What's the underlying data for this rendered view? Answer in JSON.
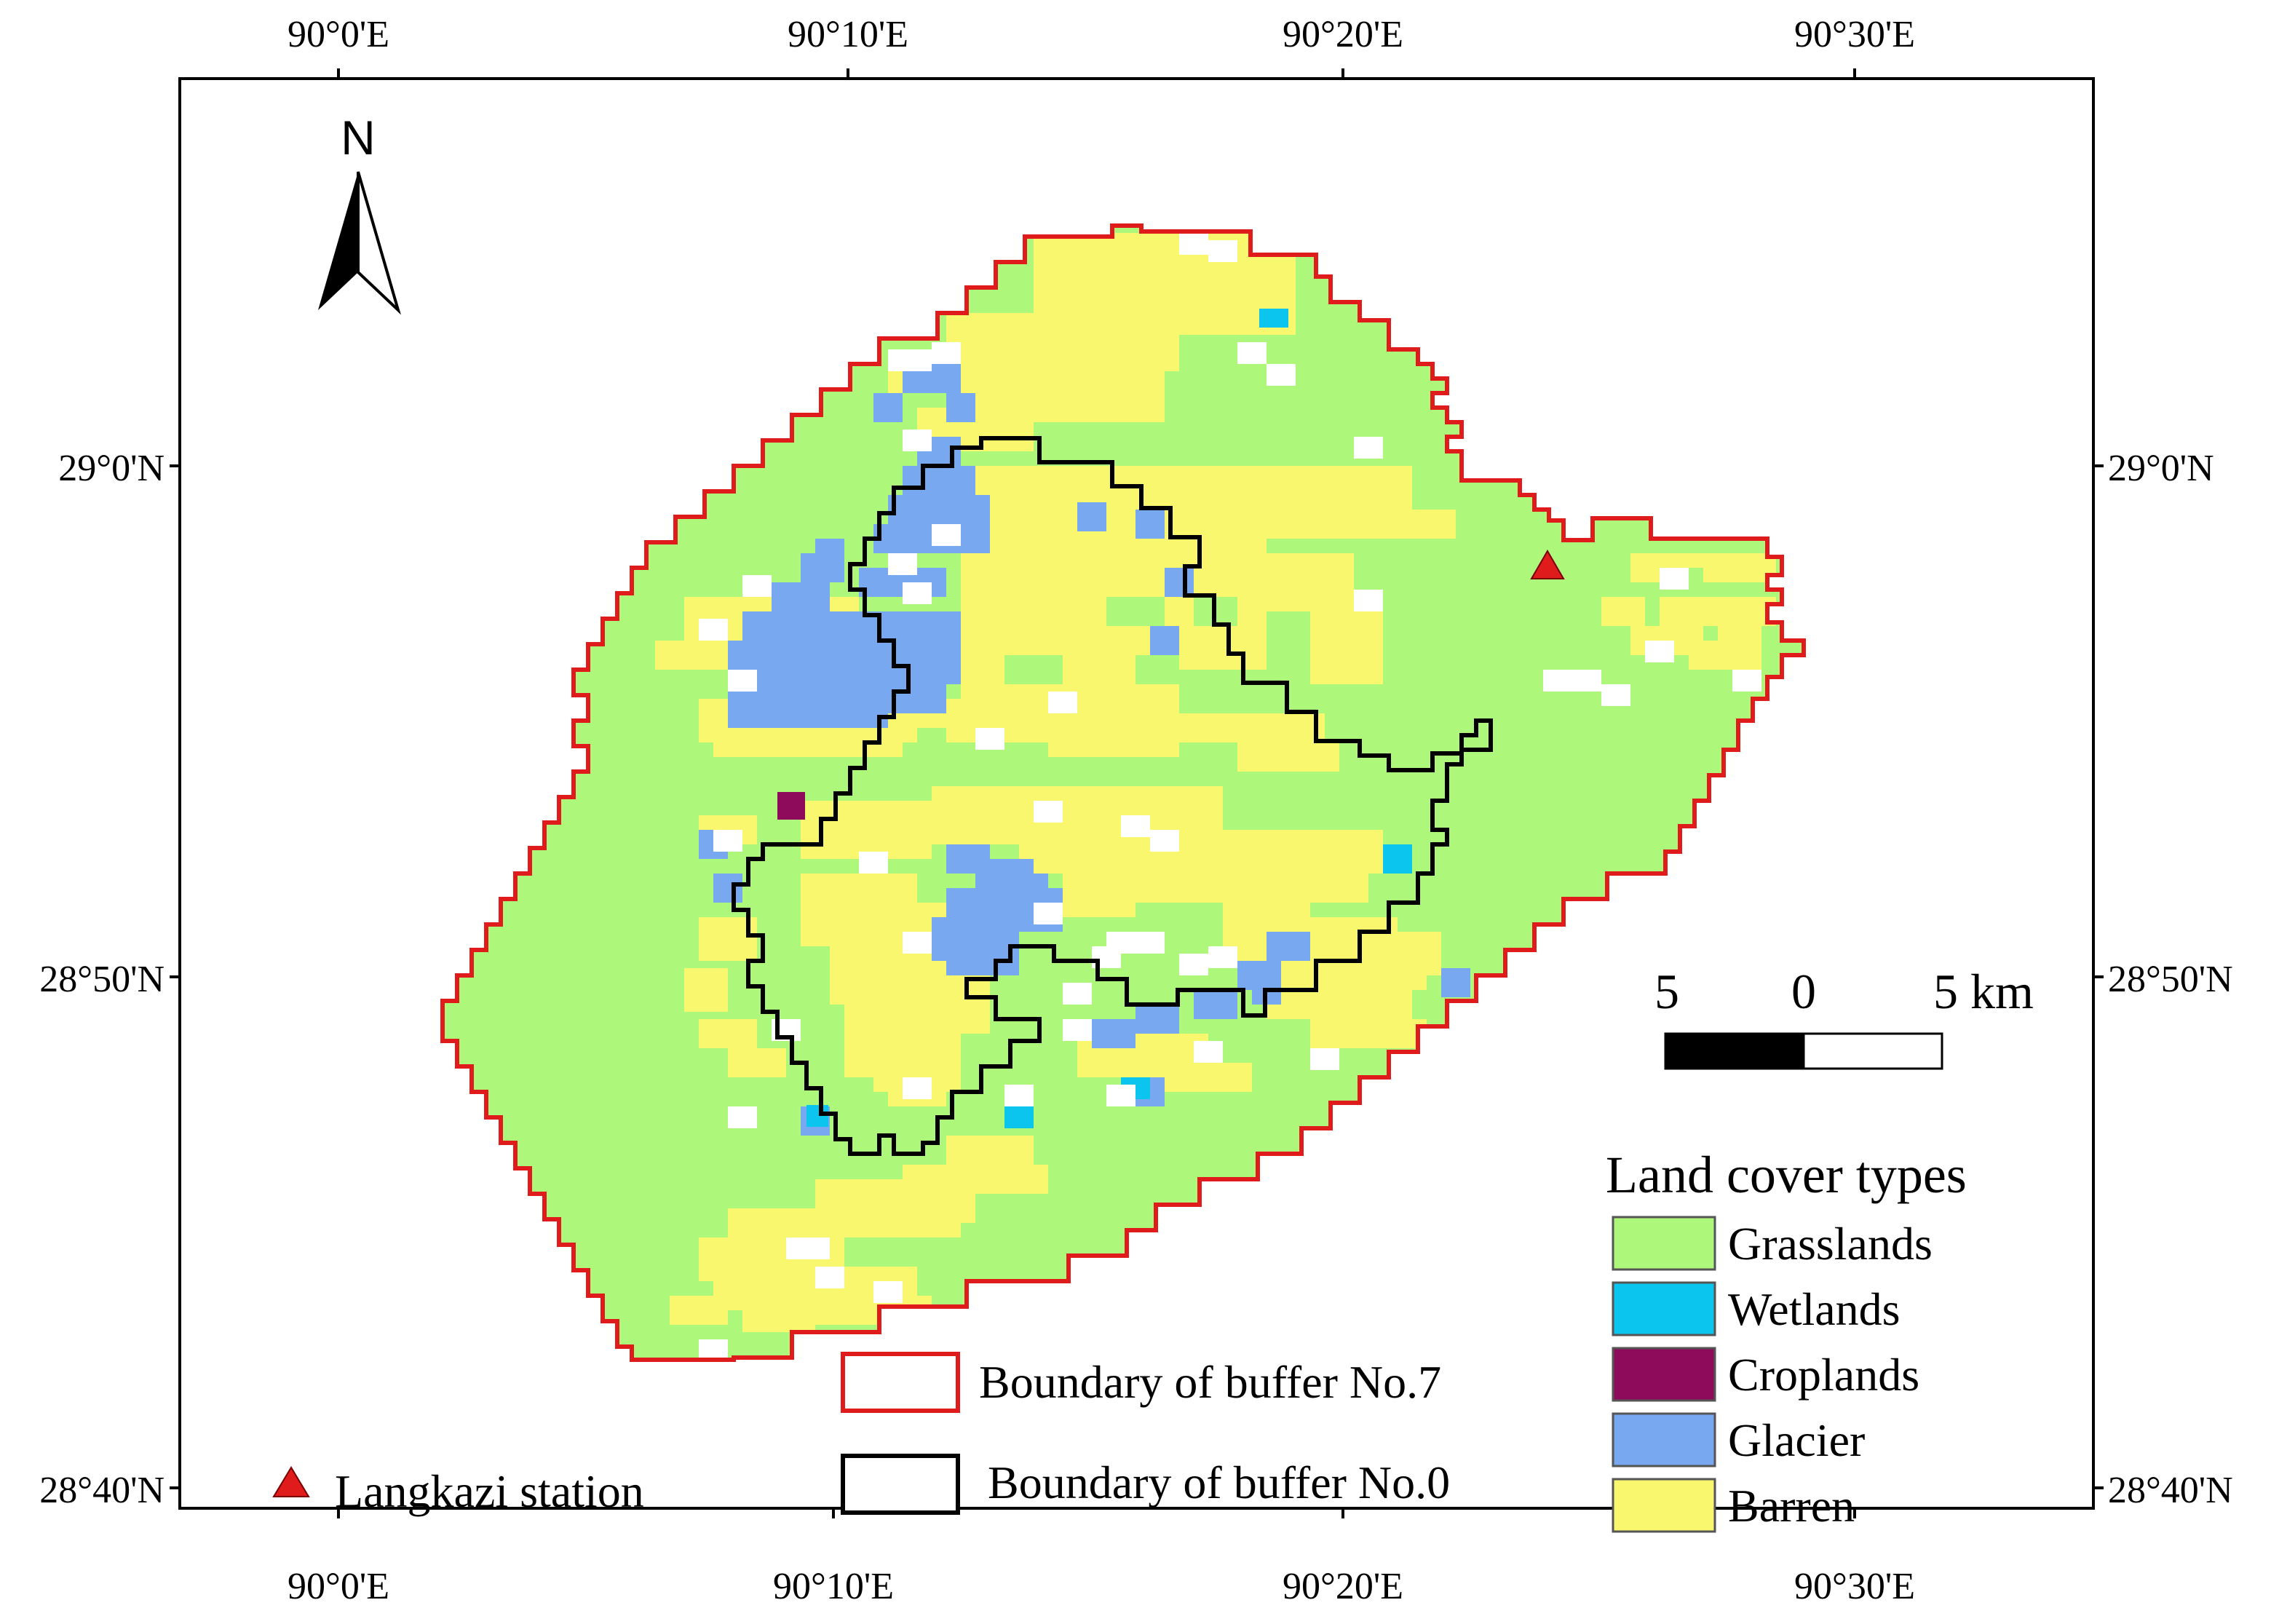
{
  "map": {
    "north_label": "N",
    "top_ticks": [
      "90°0'E",
      "90°10'E",
      "90°20'E",
      "90°30'E"
    ],
    "bottom_ticks": [
      "90°0'E",
      "90°10'E",
      "90°20'E",
      "90°30'E"
    ],
    "left_ticks": [
      "29°0'N",
      "28°50'N",
      "28°40'N"
    ],
    "right_ticks": [
      "29°0'N",
      "28°50'N",
      "28°40'N"
    ],
    "scale_bar": {
      "labels": [
        "5",
        "0",
        "5 km"
      ]
    },
    "legend": {
      "title": "Land cover types",
      "items": [
        {
          "label": "Grasslands",
          "color": "#adf77a",
          "name": "grasslands"
        },
        {
          "label": "Wetlands",
          "color": "#0bc5ef",
          "name": "wetlands"
        },
        {
          "label": "Croplands",
          "color": "#8e0a5a",
          "name": "croplands"
        },
        {
          "label": "Glacier",
          "color": "#78a8f0",
          "name": "glacier"
        },
        {
          "label": "Barren",
          "color": "#f9f76d",
          "name": "barren"
        }
      ]
    },
    "boundary_legend": {
      "buffer7_label": "Boundary of buffer No.7",
      "buffer0_label": "Boundary of buffer No.0",
      "buffer7_color": "#e01b1b",
      "buffer0_color": "#000000"
    },
    "station": {
      "label": "Langkazi station",
      "color": "#e01b1b"
    },
    "colors": {
      "grasslands": "#adf77a",
      "barren": "#f9f76d",
      "glacier": "#78a8f0",
      "wetlands": "#0bc5ef",
      "croplands": "#8e0a5a",
      "frame": "#000000"
    }
  }
}
